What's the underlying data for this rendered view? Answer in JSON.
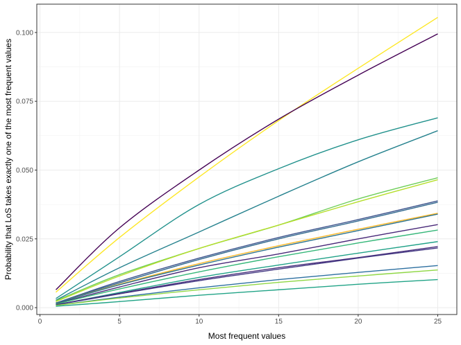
{
  "chart_data": {
    "type": "line",
    "xlabel": "Most frequent values",
    "ylabel": "Probability that LoS takes exactly one of the most frequent values",
    "xlim": [
      -0.2,
      26.2
    ],
    "ylim": [
      -0.0025,
      0.1103
    ],
    "x_ticks": [
      0,
      5,
      10,
      15,
      20,
      25
    ],
    "x_tick_labels": [
      "0",
      "5",
      "10",
      "15",
      "20",
      "25"
    ],
    "y_ticks": [
      0.0,
      0.025,
      0.05,
      0.075,
      0.1
    ],
    "y_tick_labels": [
      "0.000",
      "0.025",
      "0.050",
      "0.075",
      "0.100"
    ],
    "grid": true,
    "legend": "none",
    "series": [
      {
        "color": "#fde725",
        "points": [
          [
            1,
            0.0056
          ],
          [
            5,
            0.0255
          ],
          [
            10,
            0.0475
          ],
          [
            15,
            0.068
          ],
          [
            20,
            0.087
          ],
          [
            25,
            0.1055
          ]
        ]
      },
      {
        "color": "#440154",
        "points": [
          [
            1,
            0.0065
          ],
          [
            5,
            0.029
          ],
          [
            10,
            0.05
          ],
          [
            15,
            0.0685
          ],
          [
            20,
            0.0845
          ],
          [
            25,
            0.0995
          ]
        ]
      },
      {
        "color": "#21918c",
        "points": [
          [
            1,
            0.0033
          ],
          [
            5,
            0.0185
          ],
          [
            10,
            0.0375
          ],
          [
            15,
            0.0505
          ],
          [
            20,
            0.061
          ],
          [
            25,
            0.069
          ]
        ]
      },
      {
        "color": "#26828e",
        "points": [
          [
            1,
            0.0027
          ],
          [
            5,
            0.0145
          ],
          [
            10,
            0.0275
          ],
          [
            15,
            0.0405
          ],
          [
            20,
            0.053
          ],
          [
            25,
            0.0643
          ]
        ]
      },
      {
        "color": "#6ece58",
        "points": [
          [
            1,
            0.0025
          ],
          [
            5,
            0.012
          ],
          [
            10,
            0.0215
          ],
          [
            15,
            0.03
          ],
          [
            20,
            0.0395
          ],
          [
            25,
            0.0472
          ]
        ]
      },
      {
        "color": "#b5de2b",
        "points": [
          [
            1,
            0.0022
          ],
          [
            5,
            0.0115
          ],
          [
            10,
            0.0215
          ],
          [
            15,
            0.03
          ],
          [
            20,
            0.0385
          ],
          [
            25,
            0.0465
          ]
        ]
      },
      {
        "color": "#3b528b",
        "points": [
          [
            1,
            0.0017
          ],
          [
            5,
            0.0095
          ],
          [
            10,
            0.018
          ],
          [
            15,
            0.0255
          ],
          [
            20,
            0.032
          ],
          [
            25,
            0.0388
          ]
        ]
      },
      {
        "color": "#31688e",
        "points": [
          [
            1,
            0.0017
          ],
          [
            5,
            0.009
          ],
          [
            10,
            0.0175
          ],
          [
            15,
            0.025
          ],
          [
            20,
            0.0315
          ],
          [
            25,
            0.0383
          ]
        ]
      },
      {
        "color": "#fdb827",
        "points": [
          [
            1,
            0.0016
          ],
          [
            5,
            0.0085
          ],
          [
            10,
            0.016
          ],
          [
            15,
            0.0225
          ],
          [
            20,
            0.0285
          ],
          [
            25,
            0.0343
          ]
        ]
      },
      {
        "color": "#2c728e",
        "points": [
          [
            1,
            0.0016
          ],
          [
            5,
            0.0083
          ],
          [
            10,
            0.0155
          ],
          [
            15,
            0.022
          ],
          [
            20,
            0.028
          ],
          [
            25,
            0.034
          ]
        ]
      },
      {
        "color": "#482878",
        "points": [
          [
            1,
            0.0014
          ],
          [
            5,
            0.0075
          ],
          [
            10,
            0.0145
          ],
          [
            15,
            0.0195
          ],
          [
            20,
            0.025
          ],
          [
            25,
            0.0302
          ]
        ]
      },
      {
        "color": "#35b779",
        "points": [
          [
            1,
            0.0013
          ],
          [
            5,
            0.0068
          ],
          [
            10,
            0.013
          ],
          [
            15,
            0.0185
          ],
          [
            20,
            0.0235
          ],
          [
            25,
            0.0282
          ]
        ]
      },
      {
        "color": "#1fa187",
        "points": [
          [
            1,
            0.001
          ],
          [
            5,
            0.0055
          ],
          [
            10,
            0.011
          ],
          [
            15,
            0.0155
          ],
          [
            20,
            0.0198
          ],
          [
            25,
            0.024
          ]
        ]
      },
      {
        "color": "#472d7b",
        "points": [
          [
            1,
            0.0011
          ],
          [
            5,
            0.0052
          ],
          [
            10,
            0.0102
          ],
          [
            15,
            0.0145
          ],
          [
            20,
            0.0182
          ],
          [
            25,
            0.0222
          ]
        ]
      },
      {
        "color": "#443983",
        "points": [
          [
            1,
            0.001
          ],
          [
            5,
            0.005
          ],
          [
            10,
            0.0098
          ],
          [
            15,
            0.014
          ],
          [
            20,
            0.018
          ],
          [
            25,
            0.0217
          ]
        ]
      },
      {
        "color": "#2c6fa0",
        "points": [
          [
            1,
            0.0008
          ],
          [
            5,
            0.0038
          ],
          [
            10,
            0.0072
          ],
          [
            15,
            0.0102
          ],
          [
            20,
            0.0128
          ],
          [
            25,
            0.0153
          ]
        ]
      },
      {
        "color": "#8fd744",
        "points": [
          [
            1,
            0.0008
          ],
          [
            5,
            0.0035
          ],
          [
            10,
            0.0065
          ],
          [
            15,
            0.0092
          ],
          [
            20,
            0.0115
          ],
          [
            25,
            0.0137
          ]
        ]
      },
      {
        "color": "#20a386",
        "points": [
          [
            1,
            0.0005
          ],
          [
            5,
            0.0022
          ],
          [
            10,
            0.0045
          ],
          [
            15,
            0.0065
          ],
          [
            20,
            0.0085
          ],
          [
            25,
            0.0102
          ]
        ]
      }
    ]
  }
}
